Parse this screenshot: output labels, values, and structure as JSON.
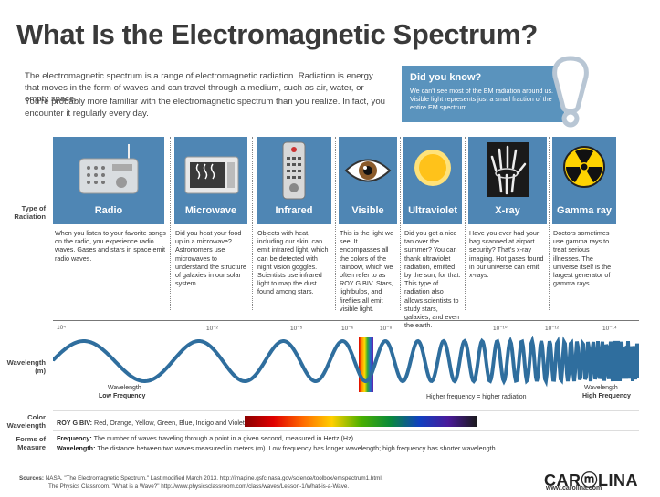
{
  "title": "What Is the Electromagnetic Spectrum?",
  "intro": {
    "p1": "The electromagnetic spectrum is a range of electromagnetic radiation. Radiation is energy that moves in the form of waves and can travel through a medium, such as air, water, or empty space.",
    "p2": "You're probably more familiar with the electromagnetic spectrum than you realize. In fact, you encounter it regularly every day."
  },
  "did_you_know": {
    "heading": "Did you know?",
    "body": "We can't see most of the EM radiation around us. Visible light represents just a small fraction of the entire EM spectrum."
  },
  "row_labels": {
    "type": "Type of Radiation",
    "wavelength": "Wavelength (m)",
    "color": "Color Wavelength",
    "forms": "Forms of Measure"
  },
  "radiation_types": [
    {
      "label": "Radio",
      "icon": "radio-icon",
      "description": "When you listen to your favorite songs on the radio, you experience radio waves. Gases and stars in space emit radio waves."
    },
    {
      "label": "Microwave",
      "icon": "microwave-oven-icon",
      "description": "Did you heat your food up in a microwave? Astronomers use microwaves to understand the structure of galaxies in our solar system."
    },
    {
      "label": "Infrared",
      "icon": "remote-control-icon",
      "description": "Objects with heat, including our skin, can emit infrared light, which can be detected with night vision goggles. Scientists use infrared light to map the dust found among stars."
    },
    {
      "label": "Visible",
      "icon": "eye-icon",
      "description": "This is the light we see. It encompasses all the colors of the rainbow, which we often refer to as ROY G BIV. Stars, lightbulbs, and fireflies all emit visible light."
    },
    {
      "label": "Ultraviolet",
      "icon": "sun-icon",
      "description": "Did you get a nice tan over the summer? You can thank ultraviolet radiation, emitted by the sun, for that. This type of radiation also allows scientists to study stars, galaxies, and even the earth."
    },
    {
      "label": "X-ray",
      "icon": "hand-xray-icon",
      "description": "Have you ever had your bag scanned at airport security? That's x-ray imaging. Hot gases found in our universe can emit x-rays."
    },
    {
      "label": "Gamma ray",
      "icon": "radiation-hazard-icon",
      "description": "Doctors sometimes use gamma rays to treat serious illnesses. The universe itself is the largest generator of gamma rays."
    }
  ],
  "wavelength_ticks": [
    "10⁴",
    "10⁻²",
    "10⁻⁵",
    "10⁻⁶",
    "10⁻⁸",
    "10⁻¹⁰",
    "10⁻¹²",
    "10⁻¹⁴"
  ],
  "wave_annotations": {
    "low_wavelength": "Wavelength",
    "low_frequency": "Low Frequency",
    "middle": "Higher frequency = higher radiation",
    "high_wavelength": "Wavelength",
    "high_frequency": "High Frequency"
  },
  "color_wavelength": {
    "label": "ROY G BIV:",
    "colors": "Red, Orange, Yellow, Green, Blue, Indigo and Violet"
  },
  "forms_of_measure": {
    "frequency_label": "Frequency:",
    "frequency_text": "The number of waves traveling through a point in a given second, measured in Hertz (Hz) .",
    "wavelength_label": "Wavelength:",
    "wavelength_text": "The distance between two waves measured in meters (m). Low frequency has longer wavelength; high frequency has shorter wavelength."
  },
  "sources": {
    "label": "Sources:",
    "line1": "NASA. \"The Electromagnetic Spectrum.\" Last modified March 2013. http://imagine.gsfc.nasa.gov/science/toolbox/emspectrum1.html.",
    "line2": "The Physics Classroom. \"What is a Wave?\" http://www.physicsclassroom.com/class/waves/Lesson-1/What-is-a-Wave."
  },
  "brand": {
    "name": "CARⓜLINA",
    "url": "www.carolina.com"
  },
  "colors": {
    "panel_blue": "#4f86b4",
    "info_blue": "#5a93bd",
    "wave_blue": "#2f6e9e",
    "title_gray": "#3a3a3a"
  }
}
